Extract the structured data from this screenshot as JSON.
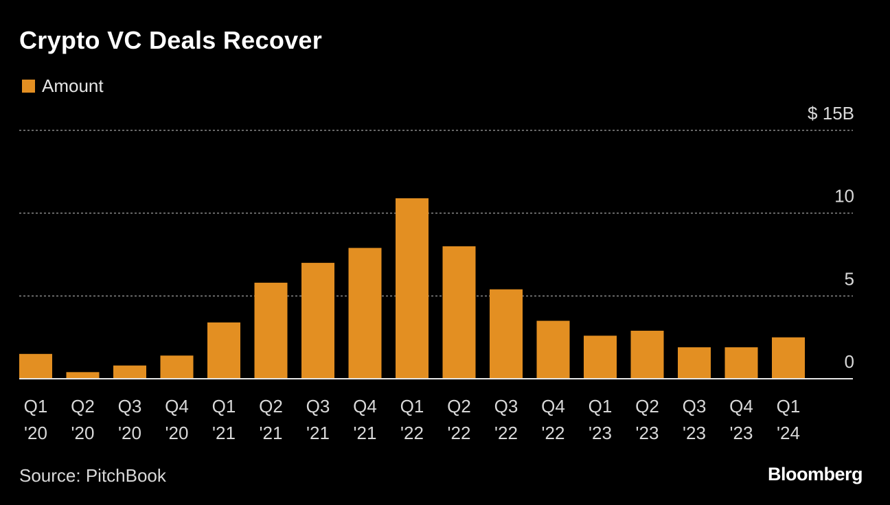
{
  "title": "Crypto VC Deals Recover",
  "legend": {
    "label": "Amount",
    "color": "#E38F22"
  },
  "source": "Source: PitchBook",
  "brand": "Bloomberg",
  "chart_data": {
    "type": "bar",
    "title": "Crypto VC Deals Recover",
    "series": [
      {
        "name": "Amount",
        "color": "#E38F22",
        "values": [
          1.5,
          0.4,
          0.8,
          1.4,
          3.4,
          5.8,
          7.0,
          7.9,
          10.9,
          8.0,
          5.4,
          3.5,
          2.6,
          2.9,
          1.9,
          1.9,
          2.5
        ]
      }
    ],
    "categories": [
      [
        "Q1",
        "'20"
      ],
      [
        "Q2",
        "'20"
      ],
      [
        "Q3",
        "'20"
      ],
      [
        "Q4",
        "'20"
      ],
      [
        "Q1",
        "'21"
      ],
      [
        "Q2",
        "'21"
      ],
      [
        "Q3",
        "'21"
      ],
      [
        "Q4",
        "'21"
      ],
      [
        "Q1",
        "'22"
      ],
      [
        "Q2",
        "'22"
      ],
      [
        "Q3",
        "'22"
      ],
      [
        "Q4",
        "'22"
      ],
      [
        "Q1",
        "'23"
      ],
      [
        "Q2",
        "'23"
      ],
      [
        "Q3",
        "'23"
      ],
      [
        "Q4",
        "'23"
      ],
      [
        "Q1",
        "'24"
      ]
    ],
    "yticks": [
      0,
      5,
      10,
      15
    ],
    "ytick_labels": [
      "0",
      "5",
      "10",
      "$ 15B"
    ],
    "ylim": [
      0,
      15
    ],
    "xlabel": "",
    "ylabel": "",
    "grid": true,
    "y_axis_side": "right",
    "legend_position": "top-left"
  }
}
